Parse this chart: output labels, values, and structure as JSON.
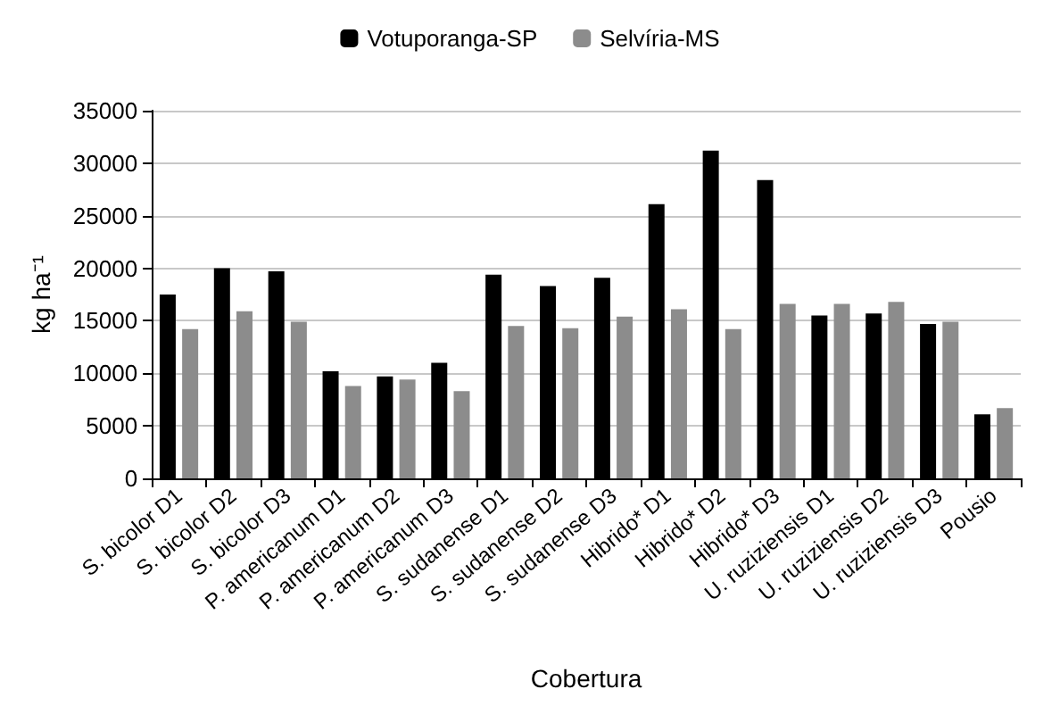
{
  "chart_data": {
    "type": "bar",
    "xlabel": "Cobertura",
    "ylabel": "kg ha⁻¹",
    "categories": [
      "S. bicolor D1",
      "S. bicolor D2",
      "S. bicolor D3",
      "P. americanum D1",
      "P. americanum D2",
      "P. americanum D3",
      "S. sudanense D1",
      "S. sudanense D2",
      "S. sudanense D3",
      "Hibrido* D1",
      "Hibrido* D2",
      "Hibrido* D3",
      "U. ruziziensis D1",
      "U. ruziziensis D2",
      "U. ruziziensis D3",
      "Pousio"
    ],
    "series": [
      {
        "name": "Votuporanga-SP",
        "color": "#000000",
        "values": [
          17500,
          20000,
          19700,
          10200,
          9700,
          11000,
          19400,
          18300,
          19100,
          26100,
          31200,
          28400,
          15500,
          15700,
          14700,
          6100
        ]
      },
      {
        "name": "Selvíria-MS",
        "color": "#8c8c8c",
        "values": [
          14200,
          15900,
          14900,
          8800,
          9400,
          8300,
          14500,
          14300,
          15400,
          16100,
          14200,
          16600,
          16600,
          16800,
          14900,
          6700
        ]
      }
    ],
    "ylim": [
      0,
      35000
    ],
    "yticks": [
      0,
      5000,
      10000,
      15000,
      20000,
      25000,
      30000,
      35000
    ],
    "grid": "y",
    "legend": "top"
  }
}
